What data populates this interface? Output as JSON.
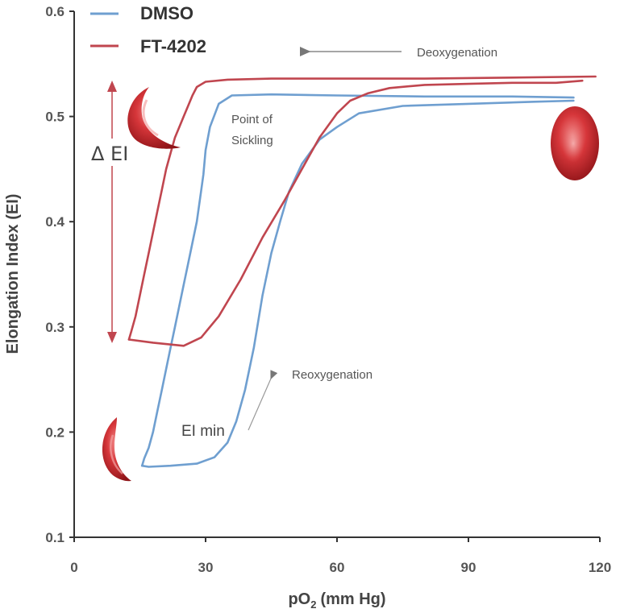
{
  "chart_data": {
    "type": "line",
    "xlabel": "pO",
    "xlabel_sub": "2",
    "xlabel_units": "(mm Hg)",
    "ylabel": "Elongation Index (EI)",
    "xlim": [
      0,
      120
    ],
    "ylim": [
      0.1,
      0.6
    ],
    "xticks": [
      0,
      30,
      60,
      90,
      120
    ],
    "xtick_labels": [
      "0",
      "30",
      "60",
      "90",
      "120"
    ],
    "yticks": [
      0.1,
      0.2,
      0.3,
      0.4,
      0.5,
      0.6
    ],
    "ytick_labels": [
      "0.1",
      "0.2",
      "0.3",
      "0.4",
      "0.5",
      "0.6"
    ],
    "legend_position": "top-left",
    "series": [
      {
        "name": "DMSO",
        "color": "#6f9fd0",
        "deoxygenation": {
          "x": [
            114,
            100,
            80,
            60,
            45,
            36,
            33,
            31,
            30,
            29.5,
            29,
            28,
            27,
            26,
            25,
            24,
            23,
            22,
            21,
            20,
            19,
            18,
            17,
            16,
            15.5
          ],
          "y": [
            0.518,
            0.519,
            0.519,
            0.52,
            0.521,
            0.52,
            0.512,
            0.49,
            0.468,
            0.445,
            0.43,
            0.4,
            0.38,
            0.36,
            0.34,
            0.32,
            0.3,
            0.28,
            0.26,
            0.24,
            0.22,
            0.2,
            0.185,
            0.175,
            0.168
          ]
        },
        "reoxygenation": {
          "x": [
            15.5,
            17,
            22,
            28,
            32,
            35,
            37,
            39,
            41,
            43,
            45,
            47,
            49,
            52,
            56,
            60,
            65,
            75,
            90,
            105,
            114
          ],
          "y": [
            0.168,
            0.167,
            0.168,
            0.17,
            0.176,
            0.19,
            0.21,
            0.24,
            0.28,
            0.33,
            0.37,
            0.4,
            0.428,
            0.455,
            0.478,
            0.49,
            0.503,
            0.51,
            0.512,
            0.514,
            0.515
          ]
        }
      },
      {
        "name": "FT-4202",
        "color": "#c0464f",
        "deoxygenation": {
          "x": [
            119,
            100,
            80,
            60,
            45,
            35,
            30,
            28,
            27,
            26,
            25,
            24,
            23,
            22,
            21,
            20,
            19,
            18,
            17,
            16,
            15,
            14,
            13,
            12.5
          ],
          "y": [
            0.538,
            0.537,
            0.536,
            0.536,
            0.536,
            0.535,
            0.533,
            0.528,
            0.52,
            0.51,
            0.5,
            0.49,
            0.48,
            0.465,
            0.45,
            0.43,
            0.41,
            0.39,
            0.37,
            0.35,
            0.33,
            0.31,
            0.295,
            0.288
          ]
        },
        "reoxygenation": {
          "x": [
            12.5,
            18,
            25,
            29,
            33,
            38,
            43,
            48,
            52,
            56,
            60,
            63,
            67,
            72,
            80,
            90,
            100,
            110,
            116
          ],
          "y": [
            0.288,
            0.285,
            0.282,
            0.29,
            0.31,
            0.345,
            0.385,
            0.42,
            0.45,
            0.48,
            0.503,
            0.515,
            0.522,
            0.527,
            0.53,
            0.531,
            0.532,
            0.532,
            0.534
          ]
        }
      }
    ],
    "annotations": {
      "deoxygenation": "Deoxygenation",
      "reoxygenation": "Reoxygenation",
      "point_of_sickling_line1": "Point of",
      "point_of_sickling_line2": "Sickling",
      "ei_min": "EI min",
      "delta_ei": "Δ EI"
    },
    "images": [
      "sickled-cell-icon",
      "normal-cell-icon"
    ]
  }
}
